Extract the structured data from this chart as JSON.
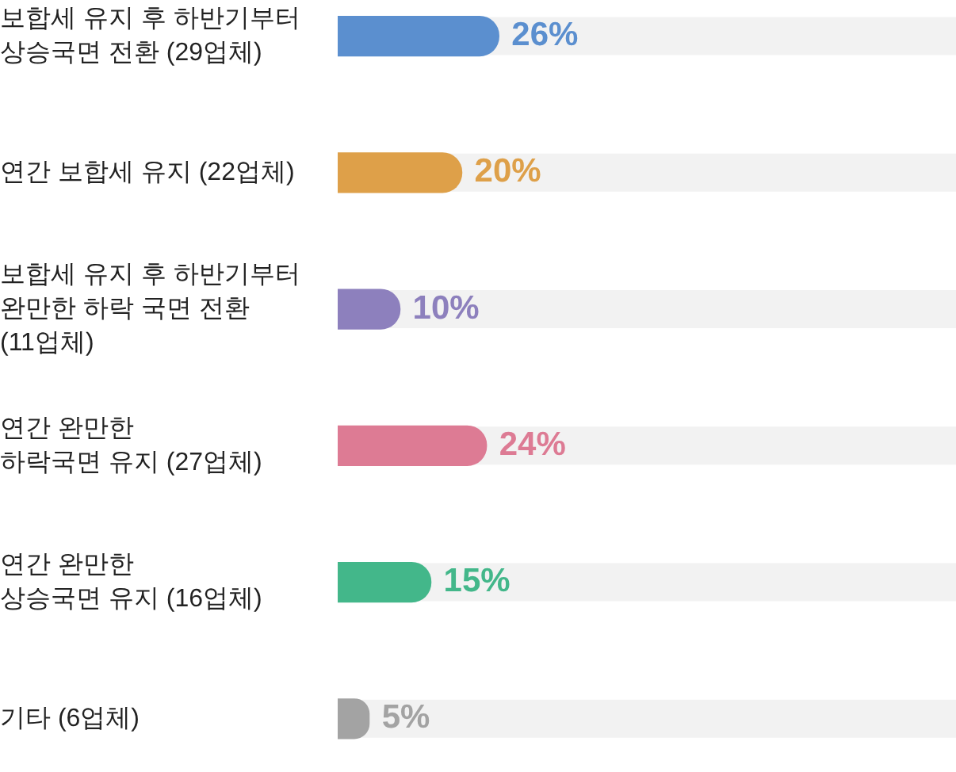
{
  "chart_data": {
    "type": "bar",
    "orientation": "horizontal",
    "categories": [
      "보합세 유지 후 하반기부터\n상승국면 전환 (29업체)",
      "연간 보합세 유지 (22업체)",
      "보합세 유지 후 하반기부터\n완만한 하락 국면 전환\n(11업체)",
      "연간 완만한\n하락국면 유지 (27업체)",
      "연간 완만한\n상승국면 유지 (16업체)",
      "기타 (6업체)"
    ],
    "values": [
      26,
      20,
      10,
      24,
      15,
      5
    ],
    "colors": [
      "#5b8fcf",
      "#dea049",
      "#8d80bd",
      "#dd7b94",
      "#43b78a",
      "#a3a3a3"
    ],
    "value_labels": [
      "26%",
      "20%",
      "10%",
      "24%",
      "15%",
      "5%"
    ],
    "xlim": [
      0,
      100
    ],
    "tick_labels": "y",
    "legend": false
  }
}
